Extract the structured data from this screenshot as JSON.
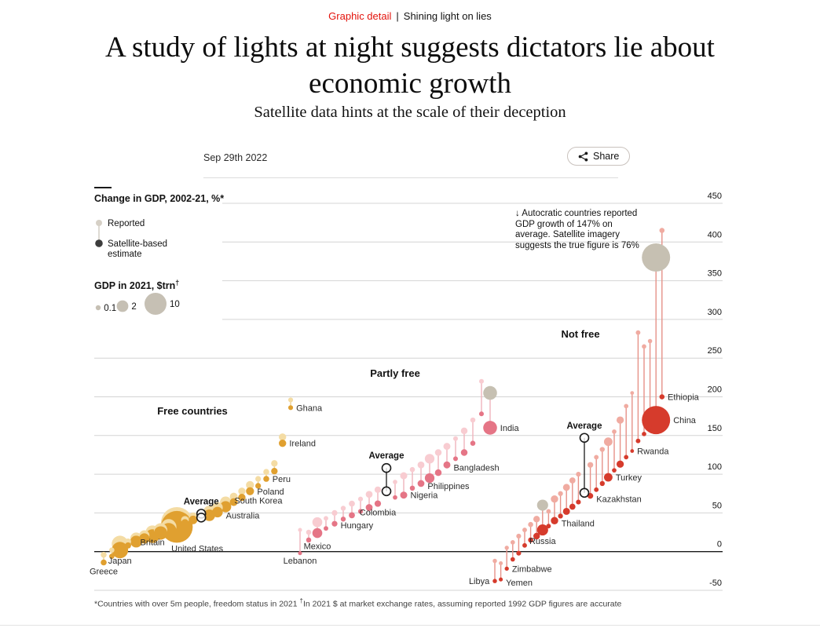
{
  "kicker": {
    "section": "Graphic detail",
    "separator": "|",
    "topic": "Shining light on lies"
  },
  "headline": "A study of lights at night suggests dictators lie about economic growth",
  "subtitle": "Satellite data hints at the scale of their deception",
  "date": "Sep 29th 2022",
  "share": {
    "label": "Share"
  },
  "footnote": {
    "part1": "*Countries with over 5m people, freedom status in 2021 ",
    "dagger": "†",
    "part2": "In 2021 $ at market exchange rates, assuming reported 1992 GDP figures are accurate"
  },
  "colors": {
    "economist_red": "#e3120b",
    "legend_reported": "#d6d0c6",
    "legend_satellite": "#3d3d3d",
    "size_legend_fill": "#c6c0b4",
    "reported_large": "#c6c0b2",
    "grid": "#d4d4d4",
    "zero_line": "#1a1a1a"
  },
  "chart_data": {
    "type": "lollipop-bubble",
    "title": "Change in GDP, 2002-21, %*",
    "legend": {
      "reported": "Reported",
      "satellite": "Satellite-based estimate"
    },
    "size_legend": {
      "title": "GDP in 2021, $trn",
      "dagger": "†",
      "values": [
        0.1,
        2,
        10
      ],
      "labels": [
        "0.1",
        "2",
        "10"
      ]
    },
    "annotation": "↓ Autocratic countries reported GDP growth of 147% on average. Satellite imagery suggests the true figure is 76%",
    "y_axis": {
      "min": -50,
      "max": 450,
      "ticks": [
        450,
        400,
        350,
        300,
        250,
        200,
        150,
        100,
        50,
        0,
        -50
      ]
    },
    "groups": [
      {
        "name": "Free countries",
        "satellite_color": "#e0a030",
        "reported_color": "#f4dca4",
        "stem_color": "#ecd193",
        "points": [
          {
            "label": "Greece",
            "reported": -4,
            "satellite": -14,
            "gdp": 0.22,
            "label_pos": "below"
          },
          {
            "label": "",
            "reported": 2,
            "satellite": -6,
            "gdp": 0.12
          },
          {
            "label": "Japan",
            "reported": 10,
            "satellite": 2,
            "gdp": 4.94,
            "label_pos": "below",
            "label_dy": -4
          },
          {
            "label": "",
            "reported": 13,
            "satellite": 8,
            "gdp": 0.25
          },
          {
            "label": "",
            "reported": 17,
            "satellite": 13,
            "gdp": 2.11
          },
          {
            "label": "",
            "reported": 21,
            "satellite": 17,
            "gdp": 1.43
          },
          {
            "label": "Britain",
            "reported": 25,
            "satellite": 20,
            "gdp": 3.13,
            "label_pos": "below",
            "label_dy": -8
          },
          {
            "label": "",
            "reported": 28,
            "satellite": 24,
            "gdp": 2.96
          },
          {
            "label": "",
            "reported": 32,
            "satellite": 27,
            "gdp": 4.26
          },
          {
            "label": "United States",
            "reported": 37,
            "satellite": 32,
            "gdp": 23.0,
            "label_pos": "below",
            "label_dx": 26
          },
          {
            "label": "",
            "reported": 41,
            "satellite": 37,
            "gdp": 0.6
          },
          {
            "label": "",
            "reported": 45,
            "satellite": 41,
            "gdp": 0.81
          },
          {
            "label": "Average",
            "reported": 49,
            "satellite": 44,
            "average": true
          },
          {
            "label": "",
            "reported": 52,
            "satellite": 47,
            "gdp": 1.99
          },
          {
            "label": "Australia",
            "reported": 57,
            "satellite": 51,
            "gdp": 1.55,
            "label_pos": "right",
            "label_dy": 4
          },
          {
            "label": "South Korea",
            "reported": 64,
            "satellite": 58,
            "gdp": 1.81,
            "label_pos": "right",
            "label_dy": -8
          },
          {
            "label": "",
            "reported": 71,
            "satellite": 64,
            "gdp": 0.63
          },
          {
            "label": "",
            "reported": 78,
            "satellite": 70,
            "gdp": 0.48
          },
          {
            "label": "Poland",
            "reported": 86,
            "satellite": 78,
            "gdp": 0.68,
            "label_pos": "right"
          },
          {
            "label": "",
            "reported": 94,
            "satellite": 85,
            "gdp": 0.18
          },
          {
            "label": "Peru",
            "reported": 103,
            "satellite": 94,
            "gdp": 0.22,
            "label_pos": "right"
          },
          {
            "label": "",
            "reported": 114,
            "satellite": 104,
            "gdp": 0.32
          },
          {
            "label": "Ireland",
            "reported": 148,
            "satellite": 140,
            "gdp": 0.5,
            "label_pos": "right"
          },
          {
            "label": "Ghana",
            "reported": 196,
            "satellite": 186,
            "gdp": 0.08,
            "label_pos": "right"
          }
        ]
      },
      {
        "name": "Partly free",
        "satellite_color": "#e57586",
        "reported_color": "#f8ccd1",
        "stem_color": "#f0b3bc",
        "points": [
          {
            "label": "Lebanon",
            "reported": 28,
            "satellite": -2,
            "gdp": 0.02,
            "label_pos": "below"
          },
          {
            "label": "",
            "reported": 25,
            "satellite": 15,
            "gdp": 0.11
          },
          {
            "label": "Mexico",
            "reported": 38,
            "satellite": 24,
            "gdp": 1.29,
            "label_pos": "below",
            "label_dy": 3
          },
          {
            "label": "",
            "reported": 43,
            "satellite": 30,
            "gdp": 0.06
          },
          {
            "label": "Hungary",
            "reported": 50,
            "satellite": 36,
            "gdp": 0.18,
            "label_pos": "right",
            "label_dy": 2
          },
          {
            "label": "",
            "reported": 56,
            "satellite": 42,
            "gdp": 0.1
          },
          {
            "label": "",
            "reported": 62,
            "satellite": 47,
            "gdp": 0.24
          },
          {
            "label": "",
            "reported": 68,
            "satellite": 52,
            "gdp": 0.08
          },
          {
            "label": "",
            "reported": 74,
            "satellite": 57,
            "gdp": 0.39
          },
          {
            "label": "Colombia",
            "reported": 80,
            "satellite": 62,
            "gdp": 0.31,
            "label_pos": "below"
          },
          {
            "label": "Average",
            "reported": 108,
            "satellite": 78,
            "average": true
          },
          {
            "label": "",
            "reported": 90,
            "satellite": 70,
            "gdp": 0.05
          },
          {
            "label": "Nigeria",
            "reported": 98,
            "satellite": 73,
            "gdp": 0.44,
            "label_pos": "right"
          },
          {
            "label": "",
            "reported": 106,
            "satellite": 82,
            "gdp": 0.11
          },
          {
            "label": "Philippines",
            "reported": 112,
            "satellite": 88,
            "gdp": 0.39,
            "label_pos": "right",
            "label_dy": 3
          },
          {
            "label": "",
            "reported": 120,
            "satellite": 95,
            "gdp": 1.19
          },
          {
            "label": "",
            "reported": 128,
            "satellite": 102,
            "gdp": 0.35
          },
          {
            "label": "Bangladesh",
            "reported": 136,
            "satellite": 112,
            "gdp": 0.42,
            "label_pos": "right",
            "label_dy": 3
          },
          {
            "label": "",
            "reported": 146,
            "satellite": 120,
            "gdp": 0.07
          },
          {
            "label": "",
            "reported": 156,
            "satellite": 128,
            "gdp": 0.35
          },
          {
            "label": "",
            "reported": 170,
            "satellite": 140,
            "gdp": 0.11
          },
          {
            "label": "",
            "reported": 220,
            "satellite": 178,
            "gdp": 0.07
          },
          {
            "label": "India",
            "reported": 205,
            "satellite": 160,
            "gdp": 3.18,
            "label_pos": "right",
            "reported_gray": true
          }
        ]
      },
      {
        "name": "Not free",
        "satellite_color": "#d63b2c",
        "reported_color": "#f0aba1",
        "stem_color": "#e69288",
        "points": [
          {
            "label": "Libya",
            "reported": -12,
            "satellite": -38,
            "gdp": 0.04,
            "label_pos": "left"
          },
          {
            "label": "Yemen",
            "reported": -15,
            "satellite": -36,
            "gdp": 0.02,
            "label_pos": "right",
            "label_dy": 4
          },
          {
            "label": "Zimbabwe",
            "reported": 5,
            "satellite": -22,
            "gdp": 0.03,
            "label_pos": "right"
          },
          {
            "label": "",
            "reported": 12,
            "satellite": -10,
            "gdp": 0.05
          },
          {
            "label": "",
            "reported": 20,
            "satellite": -2,
            "gdp": 0.08
          },
          {
            "label": "",
            "reported": 28,
            "satellite": 8,
            "gdp": 0.06
          },
          {
            "label": "",
            "reported": 35,
            "satellite": 15,
            "gdp": 0.11
          },
          {
            "label": "",
            "reported": 42,
            "satellite": 20,
            "gdp": 0.33
          },
          {
            "label": "Russia",
            "reported": 60,
            "satellite": 28,
            "gdp": 1.78,
            "label_pos": "below",
            "reported_gray": true
          },
          {
            "label": "",
            "reported": 52,
            "satellite": 33,
            "gdp": 0.06
          },
          {
            "label": "Thailand",
            "reported": 68,
            "satellite": 40,
            "gdp": 0.51,
            "label_pos": "right",
            "label_dy": 3
          },
          {
            "label": "",
            "reported": 75,
            "satellite": 46,
            "gdp": 0.09
          },
          {
            "label": "",
            "reported": 83,
            "satellite": 52,
            "gdp": 0.41
          },
          {
            "label": "",
            "reported": 92,
            "satellite": 58,
            "gdp": 0.24
          },
          {
            "label": "",
            "reported": 100,
            "satellite": 64,
            "gdp": 0.08
          },
          {
            "label": "Average",
            "reported": 147,
            "satellite": 76,
            "average": true
          },
          {
            "label": "Kazakhstan",
            "reported": 112,
            "satellite": 72,
            "gdp": 0.19,
            "label_pos": "right",
            "label_dy": 4
          },
          {
            "label": "",
            "reported": 122,
            "satellite": 80,
            "gdp": 0.06
          },
          {
            "label": "",
            "reported": 132,
            "satellite": 88,
            "gdp": 0.1
          },
          {
            "label": "Turkey",
            "reported": 142,
            "satellite": 96,
            "gdp": 0.82,
            "label_pos": "right"
          },
          {
            "label": "",
            "reported": 155,
            "satellite": 105,
            "gdp": 0.05
          },
          {
            "label": "",
            "reported": 170,
            "satellite": 113,
            "gdp": 0.48
          },
          {
            "label": "",
            "reported": 188,
            "satellite": 122,
            "gdp": 0.05
          },
          {
            "label": "Rwanda",
            "reported": 205,
            "satellite": 130,
            "gdp": 0.01,
            "label_pos": "right"
          },
          {
            "label": "",
            "reported": 283,
            "satellite": 143,
            "gdp": 0.06
          },
          {
            "label": "",
            "reported": 265,
            "satellite": 152,
            "gdp": 0.05
          },
          {
            "label": "",
            "reported": 272,
            "satellite": 160,
            "gdp": 0.04
          },
          {
            "label": "China",
            "reported": 380,
            "satellite": 170,
            "gdp": 17.73,
            "label_pos": "right",
            "reported_gray": true
          },
          {
            "label": "Ethiopia",
            "reported": 415,
            "satellite": 200,
            "gdp": 0.11,
            "label_pos": "right"
          }
        ]
      }
    ]
  }
}
